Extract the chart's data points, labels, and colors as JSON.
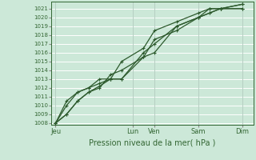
{
  "bg_color": "#cce8d8",
  "plot_bg_color": "#cce8d8",
  "grid_color": "#ffffff",
  "line_color": "#2d5a2d",
  "marker_color": "#2d5a2d",
  "ylabel_values": [
    1008,
    1009,
    1010,
    1011,
    1012,
    1013,
    1014,
    1015,
    1016,
    1017,
    1018,
    1019,
    1020,
    1021
  ],
  "ylim": [
    1007.8,
    1021.8
  ],
  "xlabel": "Pression niveau de la mer( hPa )",
  "xtick_labels": [
    "Jeu",
    "Lun",
    "Ven",
    "Sam",
    "Dim"
  ],
  "xtick_positions": [
    0,
    3.5,
    4.5,
    6.5,
    8.5
  ],
  "xlim": [
    -0.2,
    9.0
  ],
  "series": [
    [
      1008.0,
      1009.0,
      1010.5,
      1011.5,
      1012.2,
      1013.0,
      1013.0,
      1015.5,
      1017.5,
      1018.5,
      1020.0,
      1020.5,
      1021.0,
      1021.5
    ],
    [
      1008.0,
      1010.5,
      1011.5,
      1012.0,
      1012.5,
      1013.0,
      1013.0,
      1016.0,
      1017.0,
      1019.0,
      1020.0,
      1021.0,
      1021.0,
      1021.0
    ],
    [
      1008.0,
      1010.0,
      1011.5,
      1012.0,
      1013.0,
      1013.0,
      1015.0,
      1016.5,
      1018.5,
      1019.5,
      1020.5,
      1021.0,
      1021.0,
      1021.5
    ],
    [
      1008.0,
      1009.0,
      1010.5,
      1011.5,
      1012.0,
      1013.5,
      1014.0,
      1015.5,
      1016.0,
      1019.0,
      1020.0,
      1020.5,
      1021.0,
      1021.0
    ]
  ],
  "x_points": [
    0,
    0.5,
    1.0,
    1.5,
    2.0,
    2.5,
    3.0,
    4.0,
    4.5,
    5.5,
    6.5,
    7.0,
    7.5,
    8.5
  ],
  "xlabel_fontsize": 7,
  "ytick_fontsize": 5,
  "xtick_fontsize": 6
}
